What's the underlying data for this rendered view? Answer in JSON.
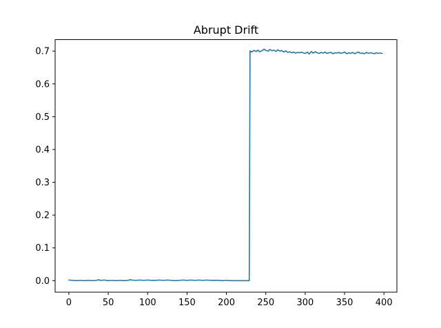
{
  "chart_data": {
    "type": "line",
    "title": "Abrupt Drift",
    "xlabel": "",
    "ylabel": "",
    "xlim": [
      -17.45,
      416.45
    ],
    "ylim": [
      -0.035,
      0.735
    ],
    "xticks": [
      0,
      50,
      100,
      150,
      200,
      250,
      300,
      350,
      400
    ],
    "yticks": [
      0.0,
      0.1,
      0.2,
      0.3,
      0.4,
      0.5,
      0.6,
      0.7
    ],
    "xtick_labels": [
      "0",
      "50",
      "100",
      "150",
      "200",
      "250",
      "300",
      "350",
      "400"
    ],
    "ytick_labels": [
      "0.0",
      "0.1",
      "0.2",
      "0.3",
      "0.4",
      "0.5",
      "0.6",
      "0.7"
    ],
    "grid": false,
    "series": [
      {
        "color": "#1f77b4",
        "x": [
          0,
          5,
          10,
          15,
          20,
          25,
          30,
          35,
          38,
          40,
          45,
          50,
          55,
          60,
          65,
          70,
          75,
          78,
          80,
          85,
          90,
          95,
          100,
          105,
          110,
          115,
          120,
          125,
          130,
          135,
          140,
          145,
          150,
          155,
          160,
          165,
          170,
          175,
          180,
          185,
          190,
          195,
          200,
          205,
          210,
          215,
          220,
          225,
          229,
          230,
          232,
          235,
          238,
          240,
          242,
          245,
          248,
          250,
          253,
          255,
          258,
          260,
          263,
          265,
          268,
          270,
          273,
          275,
          278,
          280,
          283,
          285,
          288,
          290,
          293,
          295,
          298,
          300,
          303,
          305,
          308,
          310,
          313,
          315,
          318,
          320,
          323,
          325,
          328,
          330,
          333,
          335,
          338,
          340,
          343,
          345,
          348,
          350,
          353,
          355,
          358,
          360,
          363,
          365,
          368,
          370,
          373,
          375,
          378,
          380,
          383,
          385,
          388,
          390,
          393,
          395,
          398
        ],
        "y": [
          0.002,
          0.001,
          0.0,
          0.001,
          0.0,
          0.001,
          0.0,
          0.001,
          0.003,
          0.001,
          0.002,
          0.0,
          0.001,
          0.0,
          0.001,
          0.0,
          0.001,
          0.003,
          0.002,
          0.001,
          0.002,
          0.001,
          0.002,
          0.001,
          0.001,
          0.002,
          0.001,
          0.002,
          0.001,
          0.0,
          0.001,
          0.002,
          0.001,
          0.002,
          0.001,
          0.002,
          0.001,
          0.002,
          0.001,
          0.001,
          0.001,
          0.0,
          0.001,
          0.0,
          0.0,
          0.0,
          0.0,
          0.0,
          0.0,
          0.701,
          0.697,
          0.702,
          0.699,
          0.703,
          0.698,
          0.701,
          0.706,
          0.702,
          0.7,
          0.705,
          0.701,
          0.703,
          0.699,
          0.704,
          0.7,
          0.702,
          0.697,
          0.701,
          0.696,
          0.698,
          0.695,
          0.697,
          0.694,
          0.696,
          0.695,
          0.697,
          0.694,
          0.693,
          0.697,
          0.691,
          0.699,
          0.694,
          0.698,
          0.695,
          0.693,
          0.696,
          0.694,
          0.697,
          0.693,
          0.695,
          0.696,
          0.692,
          0.695,
          0.694,
          0.696,
          0.693,
          0.695,
          0.697,
          0.692,
          0.695,
          0.693,
          0.696,
          0.692,
          0.695,
          0.697,
          0.693,
          0.694,
          0.692,
          0.696,
          0.693,
          0.695,
          0.694,
          0.692,
          0.695,
          0.693,
          0.694,
          0.693
        ]
      }
    ]
  }
}
